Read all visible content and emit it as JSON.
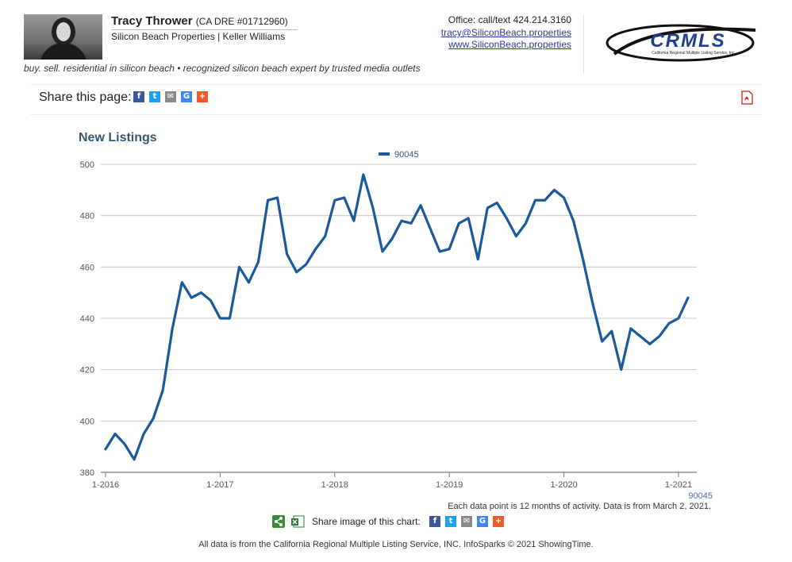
{
  "agent": {
    "name": "Tracy Thrower",
    "dre": "(CA DRE #01712960)",
    "company": "Silicon Beach Properties | Keller Williams",
    "office": "Office: call/text 424.214.3160",
    "email": "tracy@SiliconBeach.properties",
    "website": "www.SiliconBeach.properties",
    "tagline": "buy. sell. residential in silicon beach • recognized silicon beach expert by trusted media outlets"
  },
  "logo": {
    "text": "CRMLS",
    "subtext": "California Regional Multiple Listing Service, Inc.",
    "color": "#1e3f8a"
  },
  "share": {
    "label": "Share this page:",
    "buttons": [
      {
        "name": "facebook",
        "glyph": "f",
        "color": "#3b5998"
      },
      {
        "name": "twitter",
        "glyph": "t",
        "color": "#1da1f2"
      },
      {
        "name": "email",
        "glyph": "✉",
        "color": "#8a8a8a"
      },
      {
        "name": "google",
        "glyph": "G",
        "color": "#4285f4"
      },
      {
        "name": "more",
        "glyph": "+",
        "color": "#f05a2a"
      }
    ]
  },
  "chart_data": {
    "type": "line",
    "title": "New Listings",
    "xlabel": "",
    "ylabel": "",
    "x_start": "2016-01",
    "x_step": "month",
    "x_ticks": [
      "1-2016",
      "1-2017",
      "1-2018",
      "1-2019",
      "1-2020",
      "1-2021"
    ],
    "ylim": [
      380,
      500
    ],
    "y_ticks": [
      380,
      400,
      420,
      440,
      460,
      480,
      500
    ],
    "grid": true,
    "legend_position": "top-center",
    "series": [
      {
        "name": "90045",
        "color": "#1a5a9a",
        "values": [
          389,
          395,
          391,
          385,
          395,
          401,
          412,
          436,
          454,
          448,
          450,
          447,
          440,
          440,
          460,
          454,
          462,
          486,
          487,
          465,
          458,
          461,
          467,
          472,
          486,
          487,
          478,
          496,
          483,
          466,
          471,
          478,
          477,
          484,
          475,
          466,
          467,
          477,
          479,
          463,
          483,
          485,
          479,
          472,
          477,
          486,
          486,
          490,
          487,
          478,
          463,
          446,
          431,
          435,
          420,
          436,
          433,
          430,
          433,
          438,
          440,
          448
        ]
      }
    ],
    "end_label": "90045"
  },
  "note": "Each data point is 12 months of activity. Data is from March 2, 2021.",
  "share_image": {
    "label": "Share image of this chart:"
  },
  "footer": "All data is from the California Regional Multiple Listing Service, INC. InfoSparks © 2021 ShowingTime."
}
